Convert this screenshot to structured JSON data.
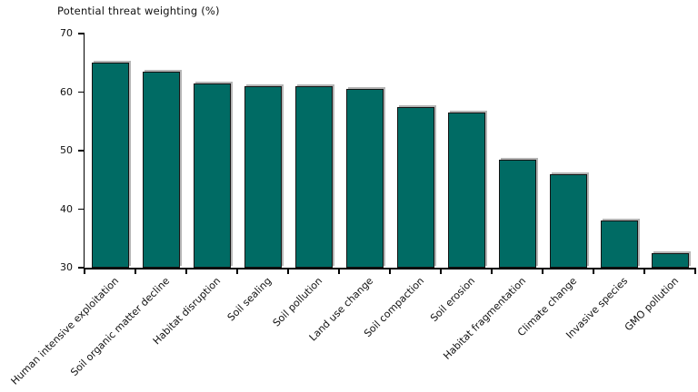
{
  "chart_data": {
    "type": "bar",
    "title": "Potential threat weighting (%)",
    "categories": [
      "Human intensive exploitation",
      "Soil organic matter decline",
      "Habitat disruption",
      "Soil sealing",
      "Soil pollution",
      "Land use change",
      "Soil compaction",
      "Soil erosion",
      "Habitat fragmentation",
      "Climate change",
      "Invasive species",
      "GMO pollution"
    ],
    "values": [
      65,
      63.5,
      61.5,
      61,
      61,
      60.5,
      57.5,
      56.5,
      48.5,
      46,
      38,
      32.5
    ],
    "xlabel": "",
    "ylabel": "",
    "ylim": [
      30,
      70
    ],
    "yticks": [
      30,
      40,
      50,
      60,
      70
    ],
    "grid": "off",
    "legend": "none",
    "bar_color": "#006b64",
    "bar_border_color": "#141414",
    "axis_color": "#000000"
  }
}
